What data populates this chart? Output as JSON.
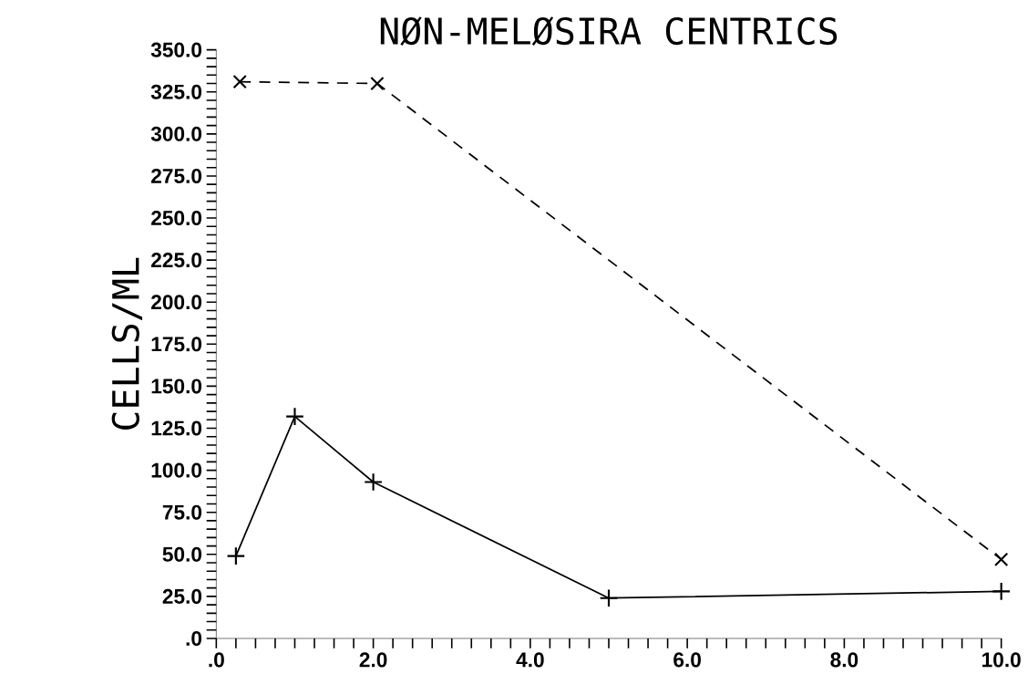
{
  "chart_data": {
    "type": "line",
    "title": "NØN-MELØSIRA CENTRICS",
    "ylabel": "CELLS/ML",
    "xlim": [
      0,
      10
    ],
    "ylim": [
      0,
      350
    ],
    "xticks": [
      {
        "value": 0,
        "label": ".0"
      },
      {
        "value": 0.25,
        "label": null
      },
      {
        "value": 0.5,
        "label": null
      },
      {
        "value": 0.75,
        "label": null
      },
      {
        "value": 1,
        "label": null
      },
      {
        "value": 1.25,
        "label": null
      },
      {
        "value": 1.5,
        "label": null
      },
      {
        "value": 1.75,
        "label": null
      },
      {
        "value": 2,
        "label": "2.0"
      },
      {
        "value": 2.25,
        "label": null
      },
      {
        "value": 2.5,
        "label": null
      },
      {
        "value": 2.75,
        "label": null
      },
      {
        "value": 3,
        "label": null
      },
      {
        "value": 3.25,
        "label": null
      },
      {
        "value": 3.5,
        "label": null
      },
      {
        "value": 3.75,
        "label": null
      },
      {
        "value": 4,
        "label": "4.0"
      },
      {
        "value": 4.25,
        "label": null
      },
      {
        "value": 4.5,
        "label": null
      },
      {
        "value": 4.75,
        "label": null
      },
      {
        "value": 5,
        "label": null
      },
      {
        "value": 5.25,
        "label": null
      },
      {
        "value": 5.5,
        "label": null
      },
      {
        "value": 5.75,
        "label": null
      },
      {
        "value": 6,
        "label": "6.0"
      },
      {
        "value": 6.25,
        "label": null
      },
      {
        "value": 6.5,
        "label": null
      },
      {
        "value": 6.75,
        "label": null
      },
      {
        "value": 7,
        "label": null
      },
      {
        "value": 7.25,
        "label": null
      },
      {
        "value": 7.5,
        "label": null
      },
      {
        "value": 7.75,
        "label": null
      },
      {
        "value": 8,
        "label": "8.0"
      },
      {
        "value": 8.25,
        "label": null
      },
      {
        "value": 8.5,
        "label": null
      },
      {
        "value": 8.75,
        "label": null
      },
      {
        "value": 9,
        "label": null
      },
      {
        "value": 9.25,
        "label": null
      },
      {
        "value": 9.5,
        "label": null
      },
      {
        "value": 9.75,
        "label": null
      },
      {
        "value": 10,
        "label": "10.0"
      }
    ],
    "yticks": [
      {
        "value": 0,
        "label": ".0"
      },
      {
        "value": 5,
        "label": null
      },
      {
        "value": 10,
        "label": null
      },
      {
        "value": 15,
        "label": null
      },
      {
        "value": 20,
        "label": null
      },
      {
        "value": 25,
        "label": "25.0"
      },
      {
        "value": 30,
        "label": null
      },
      {
        "value": 35,
        "label": null
      },
      {
        "value": 40,
        "label": null
      },
      {
        "value": 45,
        "label": null
      },
      {
        "value": 50,
        "label": "50.0"
      },
      {
        "value": 55,
        "label": null
      },
      {
        "value": 60,
        "label": null
      },
      {
        "value": 65,
        "label": null
      },
      {
        "value": 70,
        "label": null
      },
      {
        "value": 75,
        "label": "75.0"
      },
      {
        "value": 80,
        "label": null
      },
      {
        "value": 85,
        "label": null
      },
      {
        "value": 90,
        "label": null
      },
      {
        "value": 95,
        "label": null
      },
      {
        "value": 100,
        "label": "100.0"
      },
      {
        "value": 105,
        "label": null
      },
      {
        "value": 110,
        "label": null
      },
      {
        "value": 115,
        "label": null
      },
      {
        "value": 120,
        "label": null
      },
      {
        "value": 125,
        "label": "125.0"
      },
      {
        "value": 130,
        "label": null
      },
      {
        "value": 135,
        "label": null
      },
      {
        "value": 140,
        "label": null
      },
      {
        "value": 145,
        "label": null
      },
      {
        "value": 150,
        "label": "150.0"
      },
      {
        "value": 155,
        "label": null
      },
      {
        "value": 160,
        "label": null
      },
      {
        "value": 165,
        "label": null
      },
      {
        "value": 170,
        "label": null
      },
      {
        "value": 175,
        "label": "175.0"
      },
      {
        "value": 180,
        "label": null
      },
      {
        "value": 185,
        "label": null
      },
      {
        "value": 190,
        "label": null
      },
      {
        "value": 195,
        "label": null
      },
      {
        "value": 200,
        "label": "200.0"
      },
      {
        "value": 205,
        "label": null
      },
      {
        "value": 210,
        "label": null
      },
      {
        "value": 215,
        "label": null
      },
      {
        "value": 220,
        "label": null
      },
      {
        "value": 225,
        "label": "225.0"
      },
      {
        "value": 230,
        "label": null
      },
      {
        "value": 235,
        "label": null
      },
      {
        "value": 240,
        "label": null
      },
      {
        "value": 245,
        "label": null
      },
      {
        "value": 250,
        "label": "250.0"
      },
      {
        "value": 255,
        "label": null
      },
      {
        "value": 260,
        "label": null
      },
      {
        "value": 265,
        "label": null
      },
      {
        "value": 270,
        "label": null
      },
      {
        "value": 275,
        "label": "275.0"
      },
      {
        "value": 280,
        "label": null
      },
      {
        "value": 285,
        "label": null
      },
      {
        "value": 290,
        "label": null
      },
      {
        "value": 295,
        "label": null
      },
      {
        "value": 300,
        "label": "300.0"
      },
      {
        "value": 305,
        "label": null
      },
      {
        "value": 310,
        "label": null
      },
      {
        "value": 315,
        "label": null
      },
      {
        "value": 320,
        "label": null
      },
      {
        "value": 325,
        "label": "325.0"
      },
      {
        "value": 330,
        "label": null
      },
      {
        "value": 335,
        "label": null
      },
      {
        "value": 340,
        "label": null
      },
      {
        "value": 345,
        "label": null
      },
      {
        "value": 350,
        "label": "350.0"
      }
    ],
    "grid": false,
    "series": [
      {
        "color": "#000000",
        "marker": "plus",
        "line_style": "solid",
        "x": [
          0.25,
          1.0,
          2.0,
          5.0,
          10.0
        ],
        "values": [
          49,
          132,
          93,
          24,
          28
        ]
      },
      {
        "color": "#000000",
        "marker": "cross",
        "line_style": "dashed",
        "x": [
          0.3,
          2.05,
          10.0
        ],
        "values": [
          331,
          330,
          47
        ]
      }
    ]
  }
}
